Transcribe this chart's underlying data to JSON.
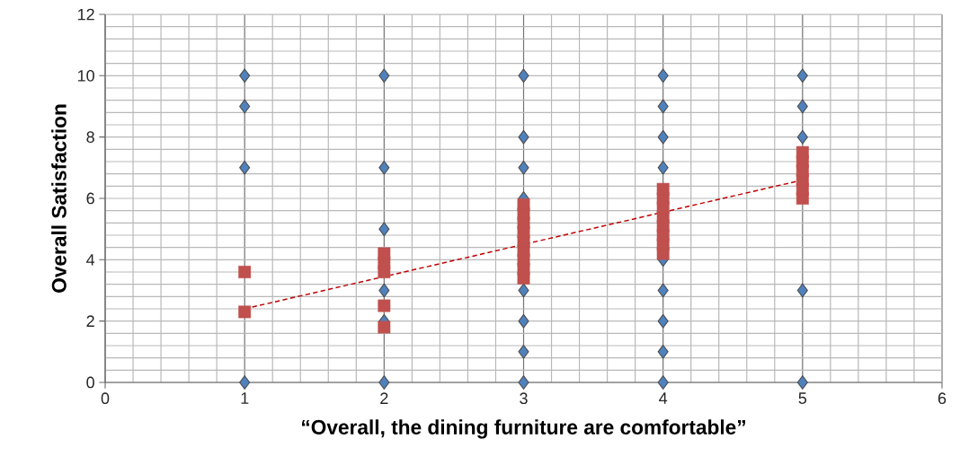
{
  "chart_data": {
    "type": "scatter",
    "xlabel": "“Overall, the dining furniture are comfortable”",
    "ylabel": "Overall Satisfaction",
    "xlim": [
      0,
      6
    ],
    "xticks": [
      0,
      1,
      2,
      3,
      4,
      5,
      6
    ],
    "ylim": [
      0,
      12
    ],
    "yticks": [
      0,
      2,
      4,
      6,
      8,
      10,
      12
    ],
    "grid": true,
    "series": [
      {
        "marker": "diamond",
        "color": "#4f81bd",
        "x": [
          1,
          1,
          1,
          1,
          2,
          2,
          2,
          2,
          2,
          2,
          3,
          3,
          3,
          3,
          3,
          3,
          3,
          3,
          4,
          4,
          4,
          4,
          4,
          4,
          4,
          4,
          4,
          5,
          5,
          5,
          5,
          5
        ],
        "values": [
          0,
          7,
          9,
          10,
          0,
          2,
          3,
          5,
          7,
          10,
          0,
          1,
          2,
          3,
          6,
          7,
          8,
          10,
          0,
          1,
          2,
          3,
          4,
          7,
          8,
          9,
          10,
          0,
          3,
          8,
          9,
          10
        ]
      },
      {
        "marker": "square",
        "color": "#c0504d",
        "x": [
          1,
          1,
          2,
          2,
          2,
          2,
          2,
          3,
          3,
          3,
          3,
          3,
          3,
          3,
          3,
          3,
          4,
          4,
          4,
          4,
          4,
          4,
          4,
          4,
          5,
          5,
          5,
          5,
          5,
          5
        ],
        "values": [
          2.3,
          3.6,
          1.8,
          2.5,
          3.6,
          3.9,
          4.2,
          3.4,
          3.7,
          4.0,
          4.3,
          4.6,
          4.9,
          5.2,
          5.5,
          5.8,
          4.2,
          4.5,
          4.8,
          5.1,
          5.4,
          5.7,
          6.0,
          6.3,
          6.0,
          6.3,
          6.6,
          6.9,
          7.2,
          7.5
        ]
      },
      {
        "type": "line",
        "marker": "none",
        "line_style": "dashed",
        "color": "#c00000",
        "x": [
          1,
          5
        ],
        "values": [
          2.4,
          6.6
        ]
      }
    ]
  }
}
